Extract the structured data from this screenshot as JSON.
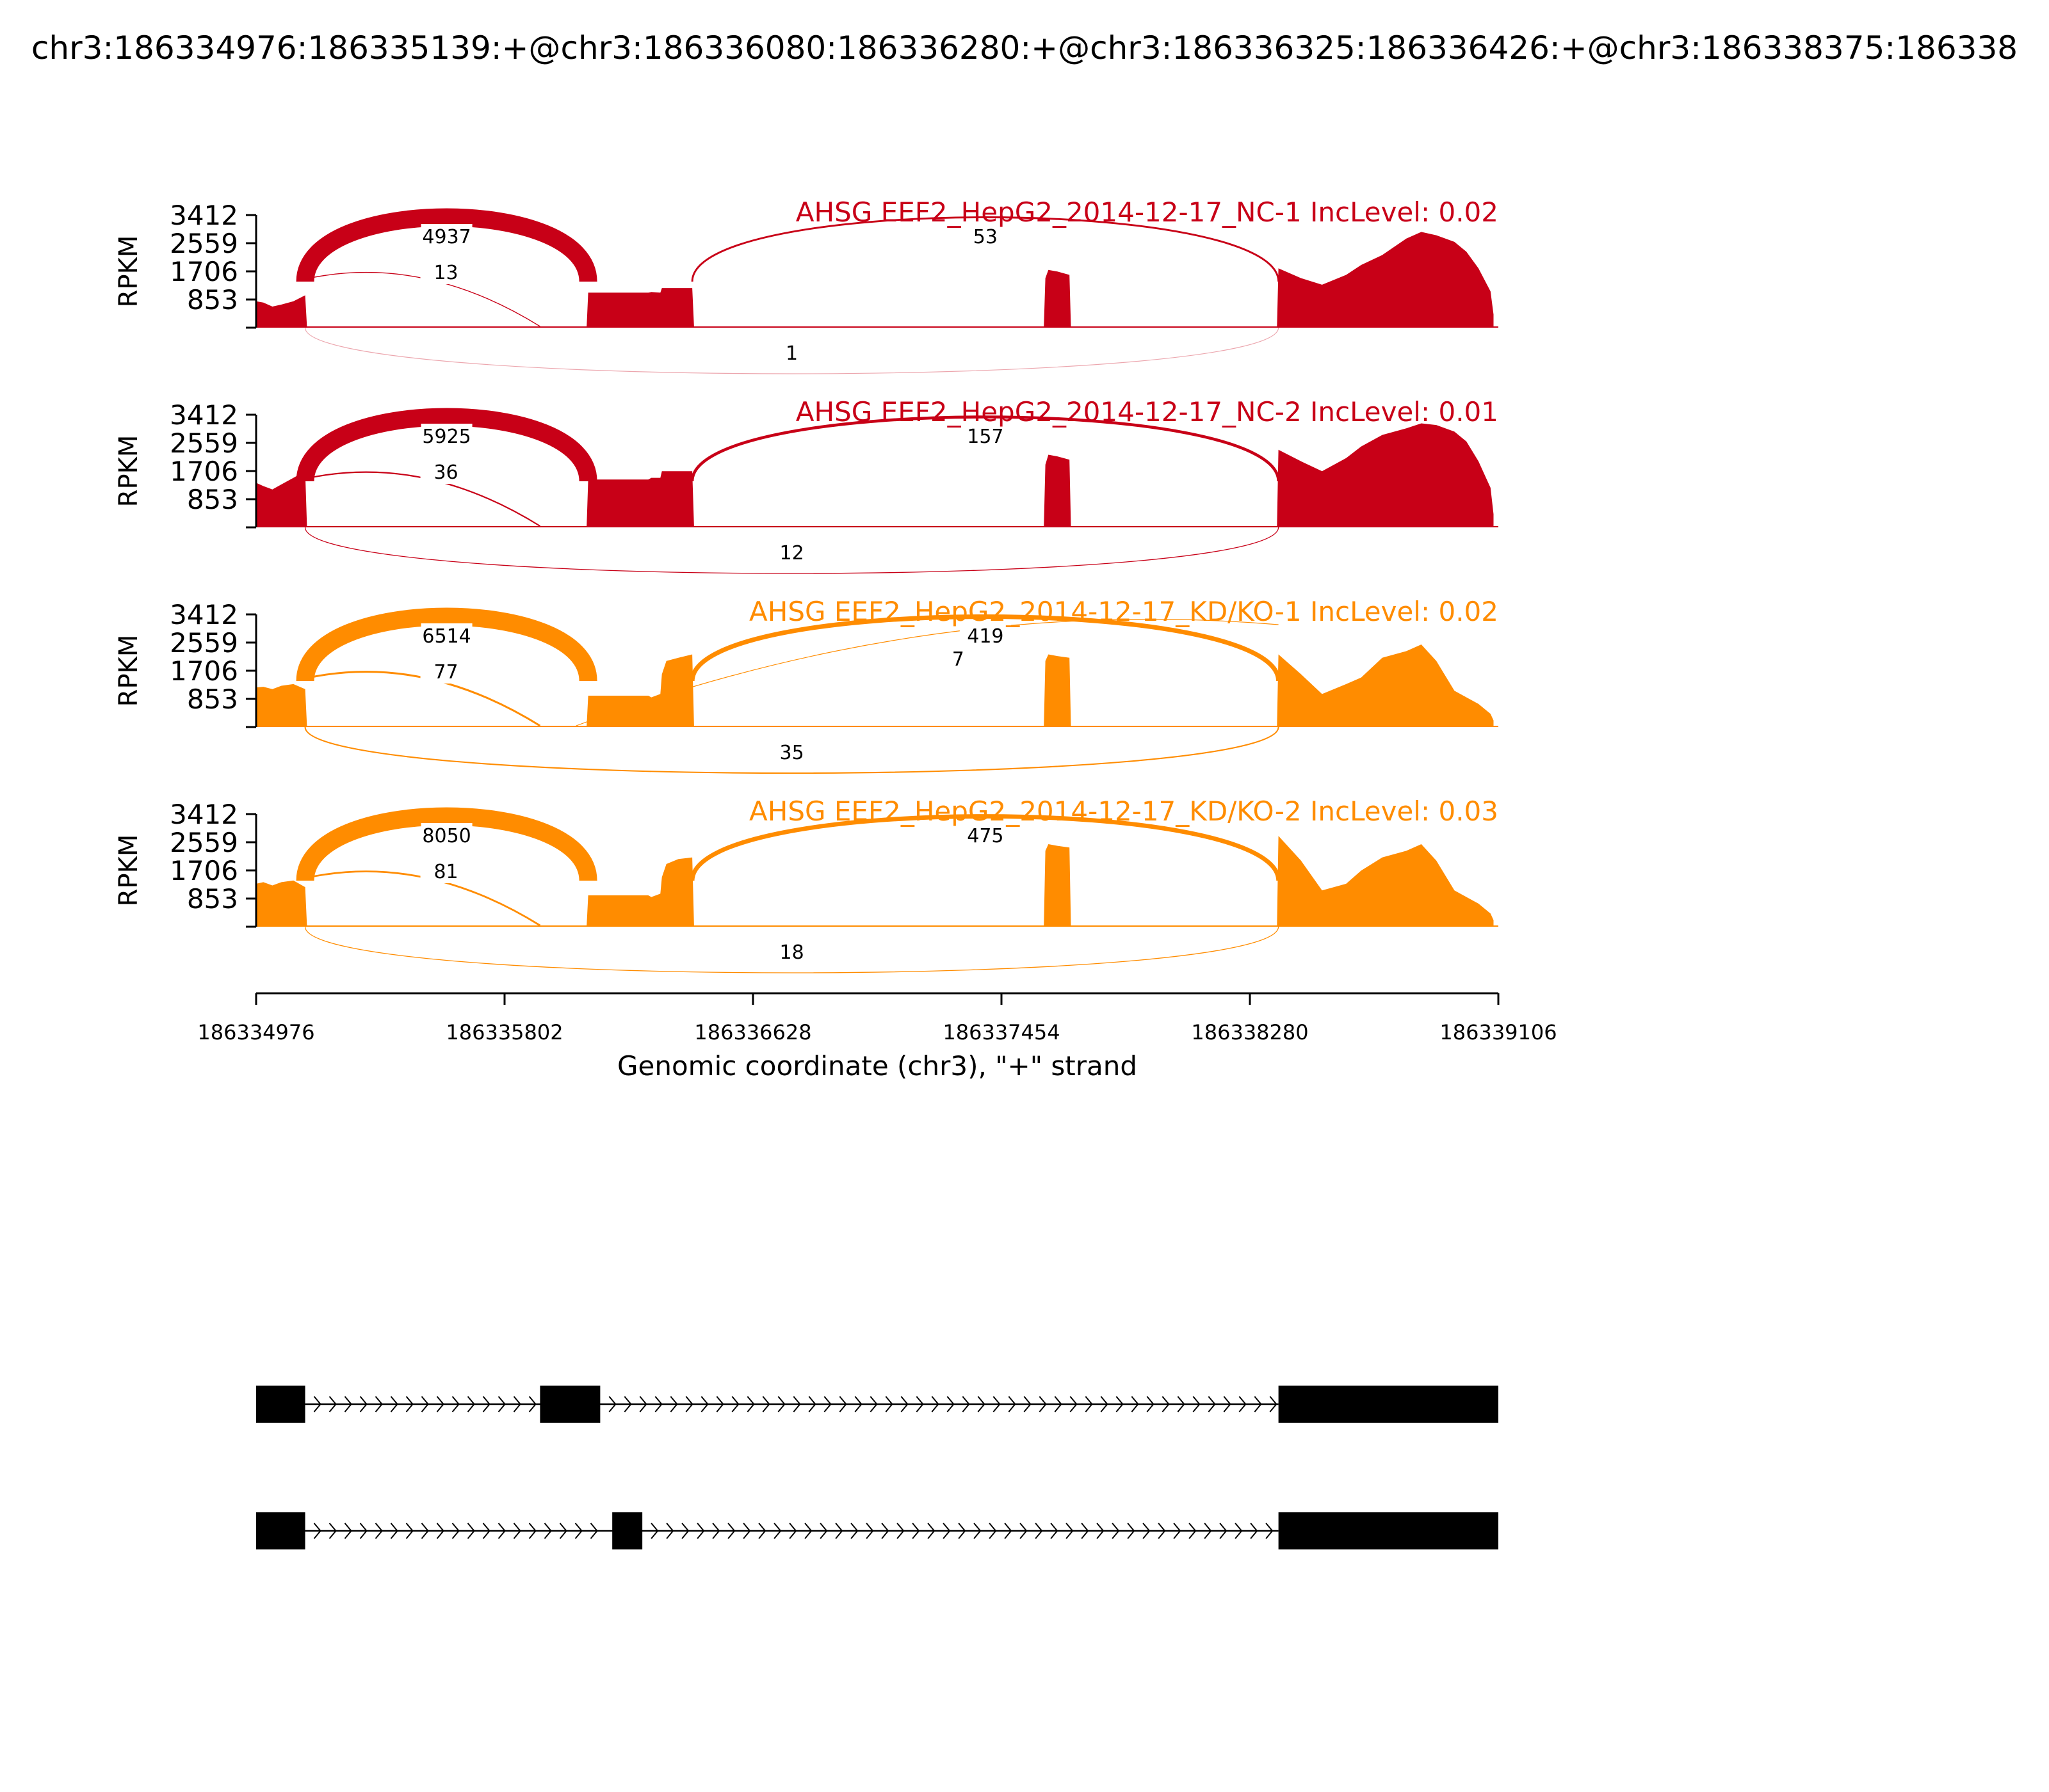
{
  "figure_title": "chr3:186334976:186335139:+@chr3:186336080:186336280:+@chr3:186336325:186336426:+@chr3:186338375:186338",
  "colors": {
    "nc": "#c80017",
    "kd": "#ff8c00",
    "axis": "#000000",
    "background": "#ffffff"
  },
  "chart_data": {
    "type": "sashimi",
    "xlabel": "Genomic coordinate (chr3), \"+\" strand",
    "ylabel": "RPKM",
    "xlim": [
      186334976,
      186339106
    ],
    "xticks": [
      "186334976",
      "186335802",
      "186336628",
      "186337454",
      "186338280",
      "186339106"
    ],
    "ylim": [
      0,
      3412
    ],
    "yticks": [
      "3412",
      "2559",
      "1706",
      "853"
    ],
    "exons_coverage": [
      [
        186334976,
        186335139
      ],
      [
        186336080,
        186336280
      ],
      [
        186336325,
        186336426
      ],
      [
        186337600,
        186337680
      ],
      [
        186338375,
        186339106
      ]
    ],
    "tracks": [
      {
        "label": "AHSG EEF2_HepG2_2014-12-17_NC-1 IncLevel: 0.02",
        "group": "nc",
        "coverage": {
          "x": [
            186334976,
            186335000,
            186335030,
            186335060,
            186335100,
            186335139,
            186335145,
            186336075,
            186336080,
            186336280,
            186336290,
            186336320,
            186336325,
            186336426,
            186336432,
            186337595,
            186337600,
            186337610,
            186337640,
            186337680,
            186337685,
            186338370,
            186338375,
            186338450,
            186338520,
            186338600,
            186338650,
            186338720,
            186338800,
            186338850,
            186338900,
            186338960,
            186339000,
            186339040,
            186339080,
            186339090
          ],
          "y": [
            800,
            760,
            640,
            700,
            800,
            980,
            30,
            30,
            1060,
            1060,
            1080,
            1060,
            1200,
            1200,
            30,
            30,
            1500,
            1750,
            1700,
            1600,
            30,
            30,
            1800,
            1500,
            1300,
            1600,
            1900,
            2200,
            2700,
            2900,
            2800,
            2600,
            2300,
            1800,
            1100,
            400
          ]
        },
        "junctions": [
          {
            "start": 186335139,
            "end": 186336080,
            "count": 4937,
            "side": "above"
          },
          {
            "start": 186335139,
            "end": 186336080,
            "count": 13,
            "side": "above"
          },
          {
            "start": 186336426,
            "end": 186338375,
            "count": 53,
            "side": "above"
          },
          {
            "start": 186335139,
            "end": 186338375,
            "count": 1,
            "side": "below"
          }
        ]
      },
      {
        "label": "AHSG EEF2_HepG2_2014-12-17_NC-2 IncLevel: 0.01",
        "group": "nc",
        "coverage": {
          "x": [
            186334976,
            186335000,
            186335030,
            186335060,
            186335100,
            186335139,
            186335145,
            186336075,
            186336080,
            186336280,
            186336290,
            186336320,
            186336325,
            186336426,
            186336432,
            186337595,
            186337600,
            186337610,
            186337640,
            186337680,
            186337685,
            186338370,
            186338375,
            186338450,
            186338520,
            186338600,
            186338650,
            186338720,
            186338800,
            186338850,
            186338900,
            186338960,
            186339000,
            186339040,
            186339080,
            186339090
          ],
          "y": [
            1350,
            1250,
            1150,
            1300,
            1500,
            1700,
            30,
            30,
            1450,
            1450,
            1500,
            1500,
            1700,
            1700,
            30,
            30,
            1900,
            2200,
            2150,
            2050,
            30,
            30,
            2350,
            2000,
            1700,
            2100,
            2450,
            2800,
            3000,
            3150,
            3100,
            2900,
            2600,
            2000,
            1200,
            400
          ]
        },
        "junctions": [
          {
            "start": 186335139,
            "end": 186336080,
            "count": 5925,
            "side": "above"
          },
          {
            "start": 186335139,
            "end": 186336080,
            "count": 36,
            "side": "above"
          },
          {
            "start": 186336426,
            "end": 186338375,
            "count": 157,
            "side": "above"
          },
          {
            "start": 186335139,
            "end": 186338375,
            "count": 12,
            "side": "below"
          }
        ]
      },
      {
        "label": "AHSG EEF2_HepG2_2014-12-17_KD/KO-1 IncLevel: 0.02",
        "group": "kd",
        "coverage": {
          "x": [
            186334976,
            186335000,
            186335030,
            186335060,
            186335100,
            186335139,
            186335145,
            186336075,
            186336080,
            186336280,
            186336290,
            186336320,
            186336325,
            186336340,
            186336380,
            186336426,
            186336432,
            186337595,
            186337600,
            186337610,
            186337640,
            186337680,
            186337685,
            186338370,
            186338375,
            186338450,
            186338520,
            186338600,
            186338650,
            186338720,
            186338800,
            186338850,
            186338900,
            186338960,
            186339000,
            186339040,
            186339080,
            186339090
          ],
          "y": [
            1200,
            1220,
            1150,
            1250,
            1300,
            1150,
            30,
            30,
            950,
            950,
            900,
            1000,
            1600,
            2000,
            2100,
            2200,
            30,
            30,
            2000,
            2200,
            2150,
            2100,
            30,
            30,
            2200,
            1600,
            1000,
            1300,
            1500,
            2100,
            2300,
            2500,
            2000,
            1100,
            900,
            700,
            400,
            200
          ]
        },
        "junctions": [
          {
            "start": 186335139,
            "end": 186336080,
            "count": 6514,
            "side": "above"
          },
          {
            "start": 186335139,
            "end": 186336080,
            "count": 77,
            "side": "above"
          },
          {
            "start": 186336426,
            "end": 186338375,
            "count": 419,
            "side": "above"
          },
          {
            "start": 186336080,
            "end": 186338375,
            "count": 7,
            "side": "above"
          },
          {
            "start": 186335139,
            "end": 186338375,
            "count": 35,
            "side": "below"
          }
        ]
      },
      {
        "label": "AHSG EEF2_HepG2_2014-12-17_KD/KO-2 IncLevel: 0.03",
        "group": "kd",
        "coverage": {
          "x": [
            186334976,
            186335000,
            186335030,
            186335060,
            186335100,
            186335139,
            186335145,
            186336075,
            186336080,
            186336280,
            186336290,
            186336320,
            186336325,
            186336340,
            186336380,
            186336426,
            186336432,
            186337595,
            186337600,
            186337610,
            186337640,
            186337680,
            186337685,
            186338370,
            186338375,
            186338450,
            186338520,
            186338600,
            186338650,
            186338720,
            186338800,
            186338850,
            186338900,
            186338960,
            186339000,
            186339040,
            186339080,
            186339090
          ],
          "y": [
            1300,
            1350,
            1250,
            1350,
            1400,
            1200,
            30,
            30,
            950,
            950,
            900,
            1000,
            1500,
            1900,
            2050,
            2100,
            30,
            30,
            2300,
            2500,
            2450,
            2400,
            30,
            30,
            2750,
            2000,
            1100,
            1300,
            1700,
            2100,
            2300,
            2500,
            2000,
            1100,
            900,
            700,
            400,
            200
          ]
        },
        "junctions": [
          {
            "start": 186335139,
            "end": 186336080,
            "count": 8050,
            "side": "above"
          },
          {
            "start": 186335139,
            "end": 186336080,
            "count": 81,
            "side": "above"
          },
          {
            "start": 186336426,
            "end": 186338375,
            "count": 475,
            "side": "above"
          },
          {
            "start": 186335139,
            "end": 186338375,
            "count": 18,
            "side": "below"
          }
        ]
      }
    ],
    "isoforms": [
      {
        "exons": [
          [
            186334976,
            186335139
          ],
          [
            186335920,
            186336120
          ],
          [
            186338375,
            186339106
          ]
        ]
      },
      {
        "exons": [
          [
            186334976,
            186335139
          ],
          [
            186336160,
            186336260
          ],
          [
            186338375,
            186339106
          ]
        ]
      }
    ]
  }
}
